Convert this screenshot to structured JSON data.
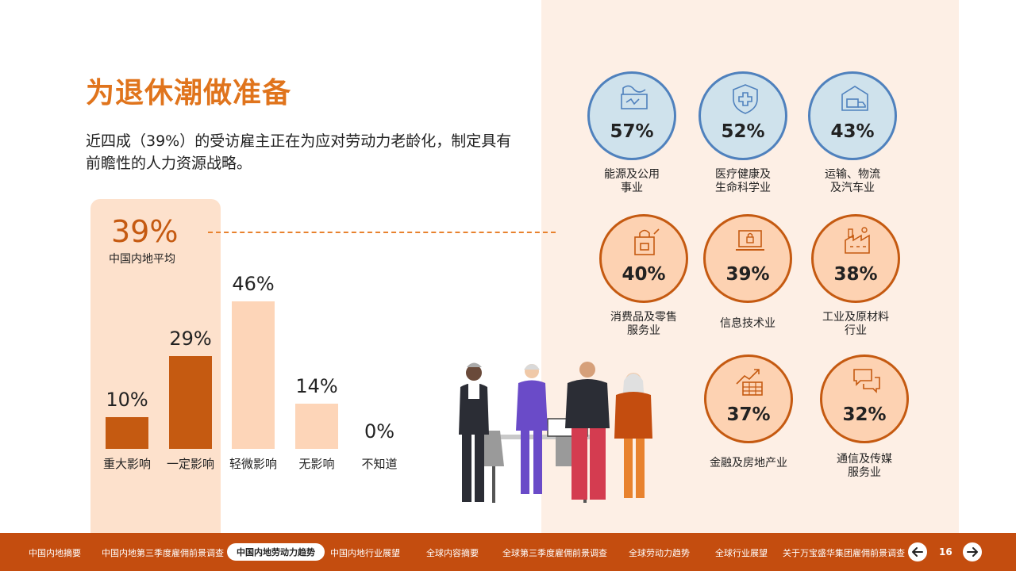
{
  "title": "为退休潮做准备",
  "subtitle": "近四成（39%）的受访雇主正在为应对劳动力老龄化，制定具有前瞻性的人力资源战略。",
  "average": {
    "value": "39%",
    "label": "中国内地平均"
  },
  "chart_data": {
    "type": "bar",
    "categories": [
      "重大影响",
      "一定影响",
      "轻微影响",
      "无影响",
      "不知道"
    ],
    "values": [
      10,
      29,
      46,
      14,
      0
    ],
    "value_labels": [
      "10%",
      "29%",
      "46%",
      "14%",
      "0%"
    ],
    "colors": [
      "#c55a11",
      "#c55a11",
      "#fdd5b8",
      "#fdd5b8",
      "#fdd5b8"
    ],
    "ylim": [
      0,
      46
    ]
  },
  "sectors": [
    {
      "label1": "能源及公用",
      "label2": "事业",
      "value": "57%",
      "style": "blue",
      "icon": "energy-icon"
    },
    {
      "label1": "医疗健康及",
      "label2": "生命科学业",
      "value": "52%",
      "style": "blue",
      "icon": "health-shield-icon"
    },
    {
      "label1": "运输、物流",
      "label2": "及汽车业",
      "value": "43%",
      "style": "blue",
      "icon": "truck-warehouse-icon"
    },
    {
      "label1": "消费品及零售",
      "label2": "服务业",
      "value": "40%",
      "style": "orange",
      "icon": "shopping-bag-icon"
    },
    {
      "label1": "信息技术业",
      "label2": "",
      "value": "39%",
      "style": "orange",
      "icon": "laptop-lock-icon"
    },
    {
      "label1": "工业及原材料",
      "label2": "行业",
      "value": "38%",
      "style": "orange",
      "icon": "factory-icon"
    },
    {
      "label1": "金融及房地产业",
      "label2": "",
      "value": "37%",
      "style": "orange",
      "icon": "finance-chart-icon"
    },
    {
      "label1": "通信及传媒",
      "label2": "服务业",
      "value": "32%",
      "style": "orange",
      "icon": "chat-bubbles-icon"
    }
  ],
  "footer": {
    "nav": [
      "中国内地摘要",
      "中国内地第三季度雇佣前景调查",
      "中国内地劳动力趋势",
      "中国内地行业展望",
      "全球内容摘要",
      "全球第三季度雇佣前景调查",
      "全球劳动力趋势",
      "全球行业展望",
      "关于万宝盛华集团雇佣前景调查"
    ],
    "active_index": 2,
    "page": "16",
    "prev_icon": "arrow-left-icon",
    "next_icon": "arrow-right-icon"
  }
}
